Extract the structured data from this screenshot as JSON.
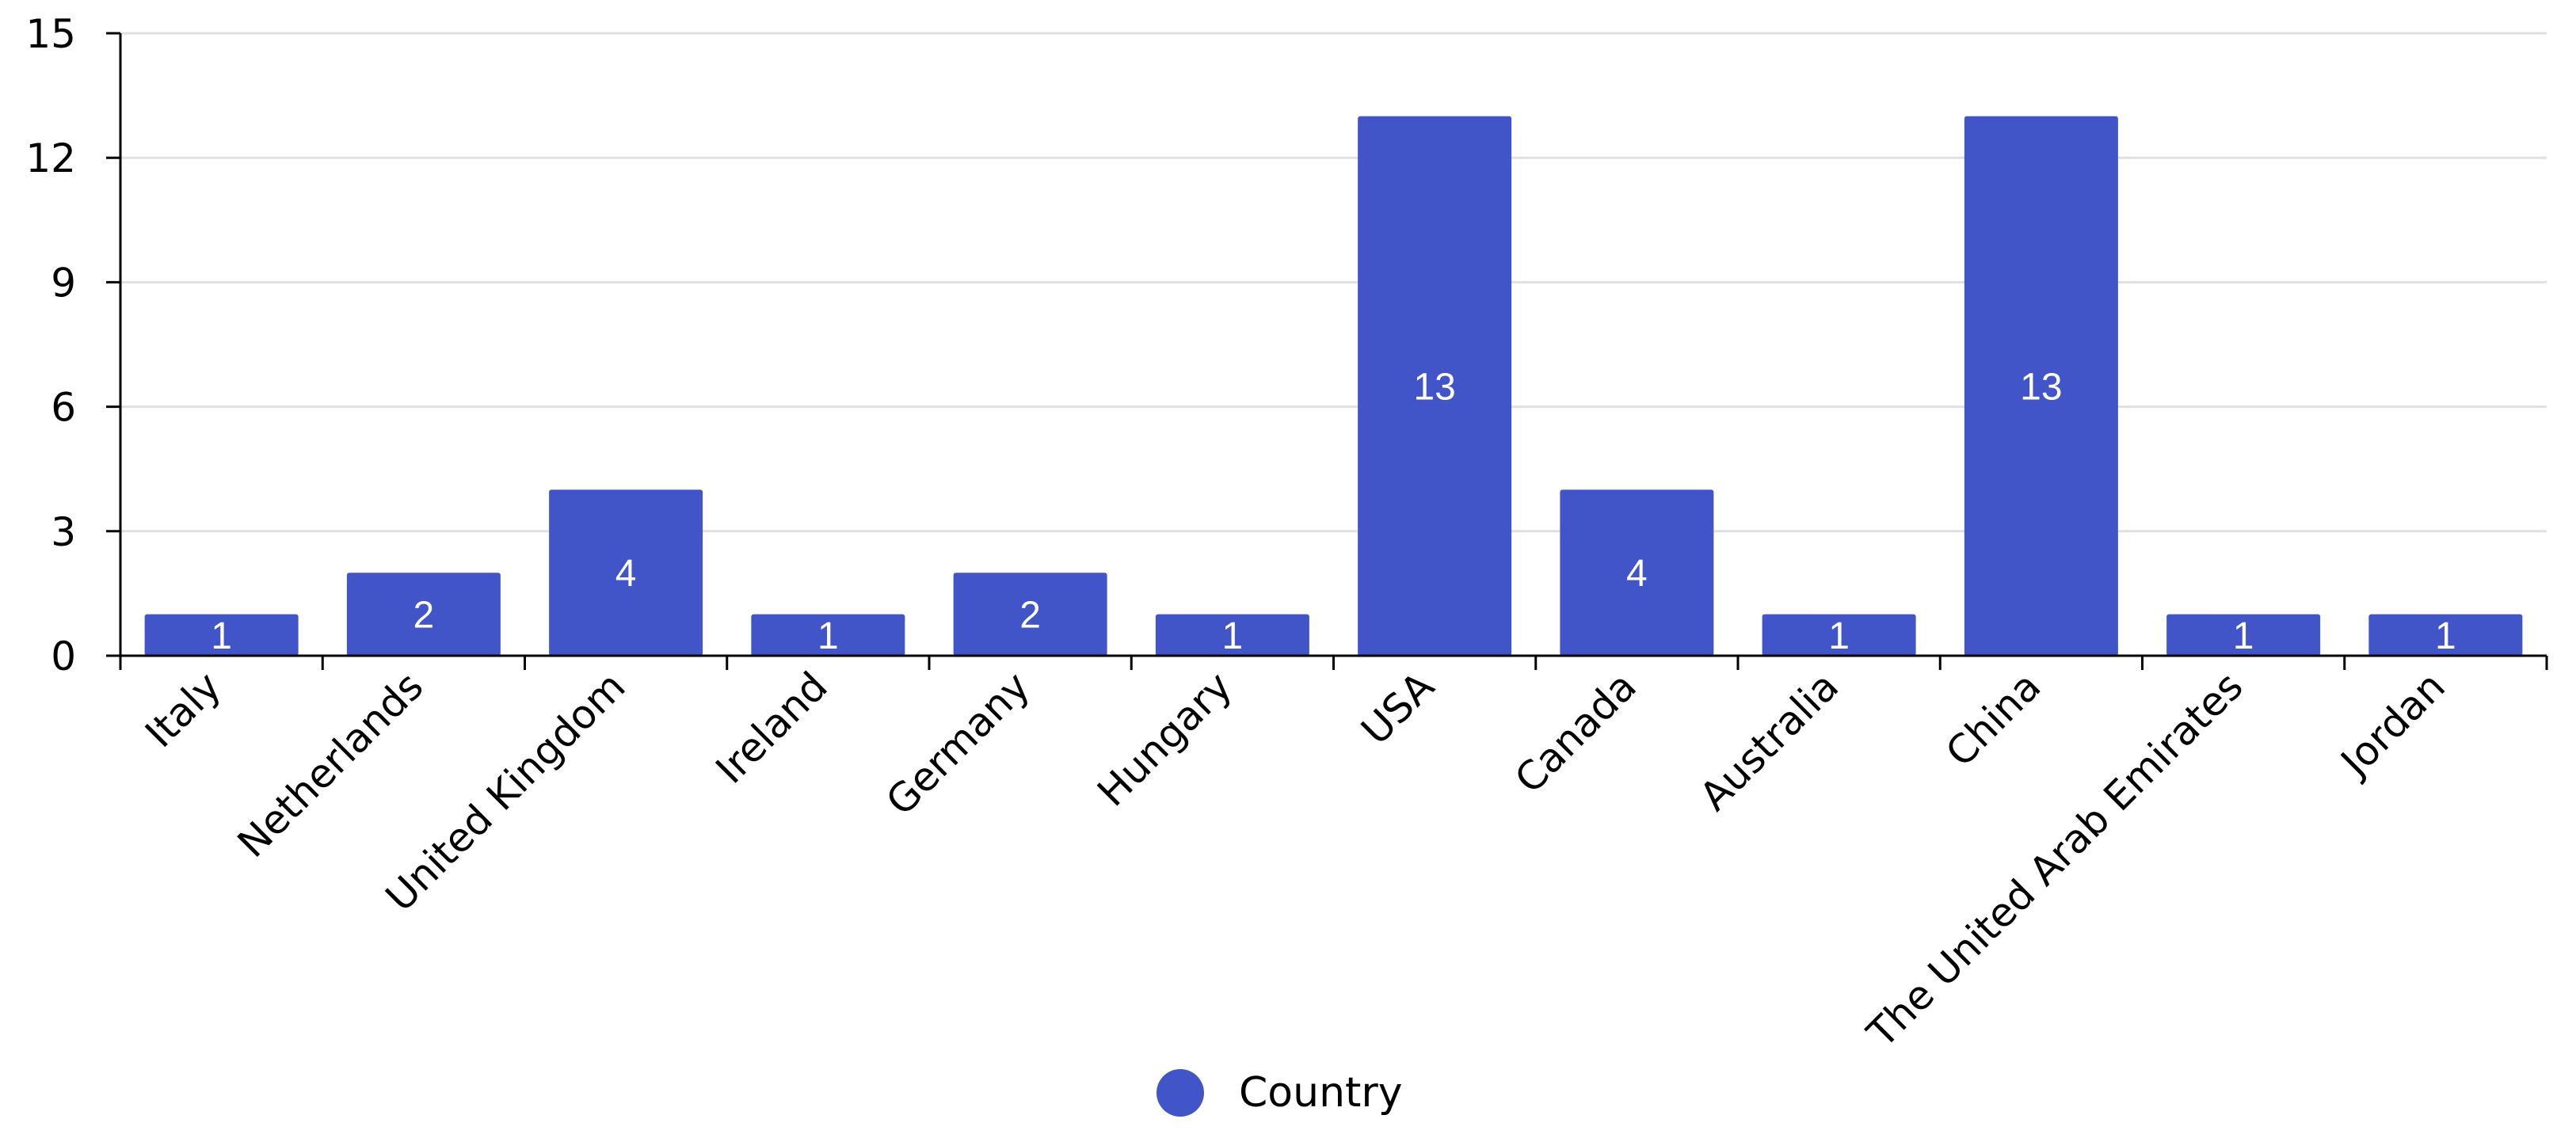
{
  "chart_data": {
    "type": "bar",
    "categories": [
      "Italy",
      "Netherlands",
      "United Kingdom",
      "Ireland",
      "Germany",
      "Hungary",
      "USA",
      "Canada",
      "Australia",
      "China",
      "The United Arab Emirates",
      "Jordan"
    ],
    "series": [
      {
        "name": "Country",
        "values": [
          1,
          2,
          4,
          1,
          2,
          1,
          13,
          4,
          1,
          13,
          1,
          1
        ],
        "color": "#4154C8"
      }
    ],
    "title": "",
    "xlabel": "",
    "ylabel": "",
    "ylim": [
      0,
      15
    ],
    "yticks": [
      0,
      3,
      6,
      9,
      12,
      15
    ],
    "grid": true,
    "legend_position": "bottom-center",
    "data_labels": true
  },
  "legend": {
    "label": "Country"
  }
}
